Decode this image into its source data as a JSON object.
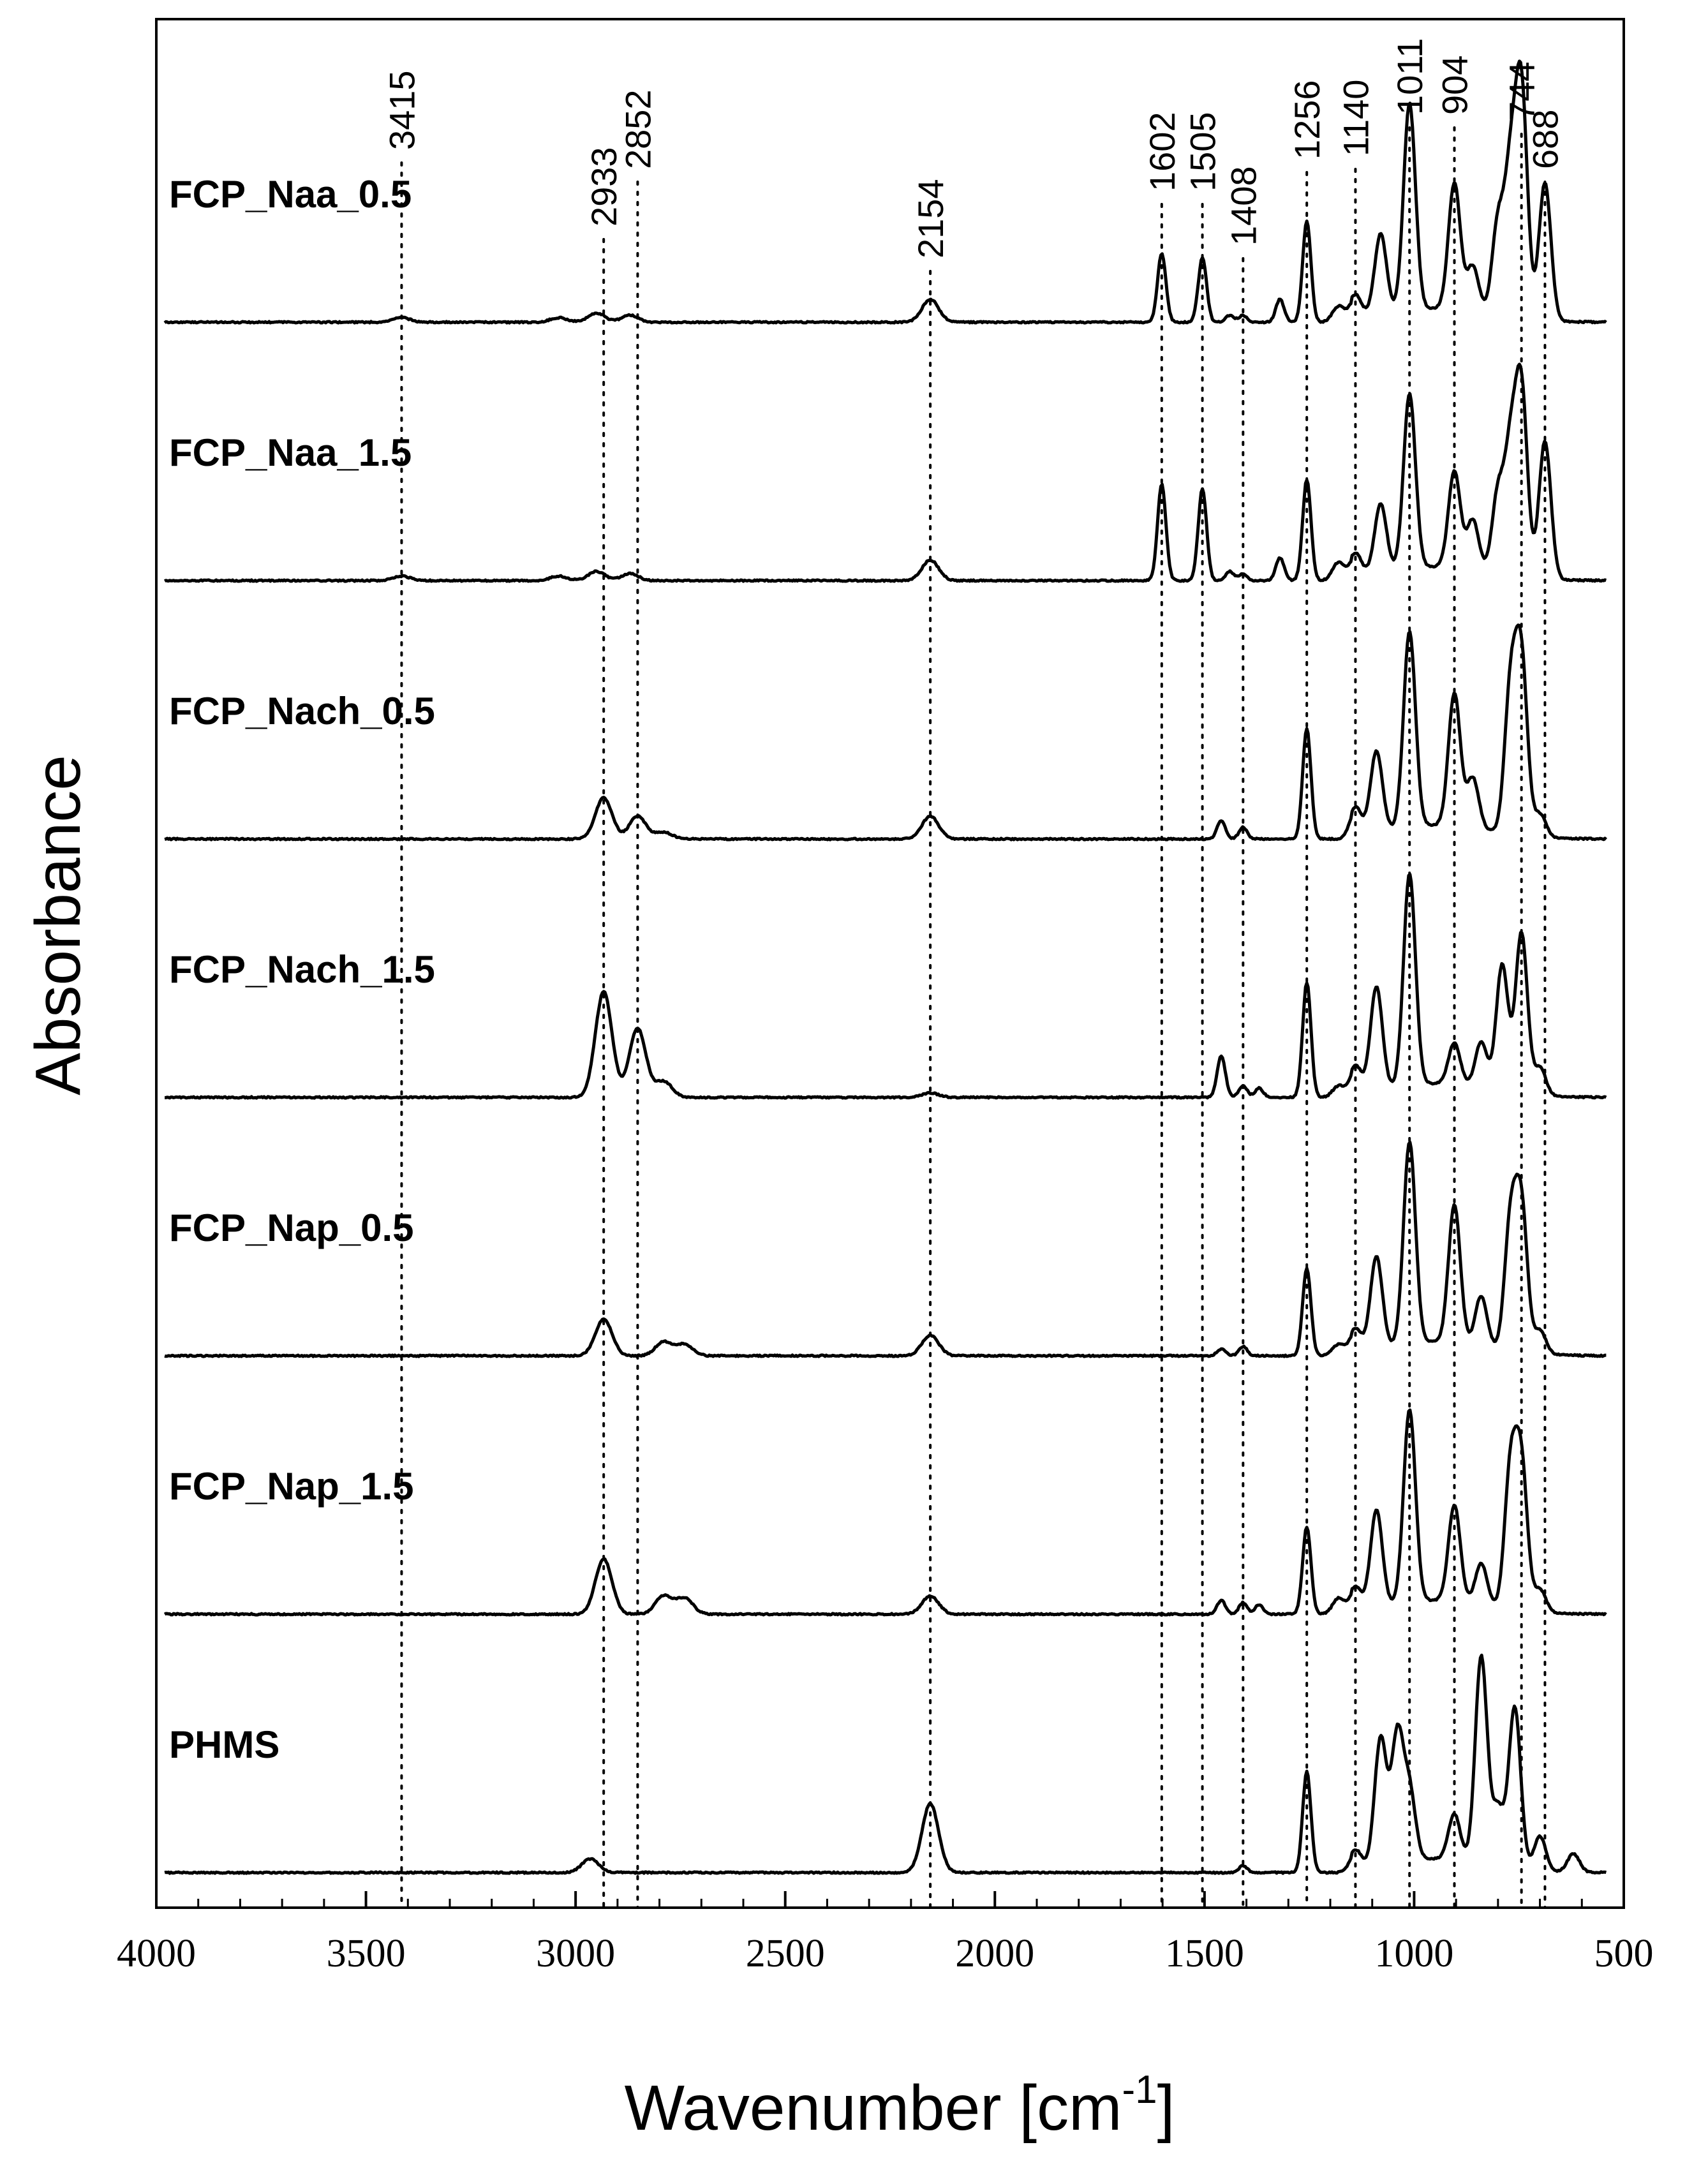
{
  "chart_data": {
    "type": "line",
    "xlabel": "Wavenumber [cm",
    "xlabel_sup": "-1",
    "xlabel_end": "]",
    "ylabel": "Absorbance",
    "xlim": [
      4000,
      500
    ],
    "x_reversed": true,
    "x_ticks": [
      4000,
      3500,
      3000,
      2500,
      2000,
      1500,
      1000,
      500
    ],
    "y_ticks_shown": false,
    "grid": false,
    "legend": "none",
    "reference_lines": [
      {
        "x": 3415,
        "label": "3415"
      },
      {
        "x": 2933,
        "label": "2933"
      },
      {
        "x": 2852,
        "label": "2852"
      },
      {
        "x": 2154,
        "label": "2154"
      },
      {
        "x": 1602,
        "label": "1602"
      },
      {
        "x": 1505,
        "label": "1505"
      },
      {
        "x": 1408,
        "label": "1408"
      },
      {
        "x": 1256,
        "label": "1256"
      },
      {
        "x": 1140,
        "label": "1140"
      },
      {
        "x": 1011,
        "label": "1011"
      },
      {
        "x": 904,
        "label": "904"
      },
      {
        "x": 744,
        "label": "744"
      },
      {
        "x": 688,
        "label": "688"
      }
    ],
    "series": [
      {
        "name": "FCP_Naa_0.5",
        "offset": 6,
        "peaks": [
          [
            3415,
            0.02
          ],
          [
            3040,
            0.02
          ],
          [
            2950,
            0.04
          ],
          [
            2870,
            0.03
          ],
          [
            2154,
            0.1
          ],
          [
            1602,
            0.3
          ],
          [
            1505,
            0.28
          ],
          [
            1440,
            0.03
          ],
          [
            1408,
            0.03
          ],
          [
            1320,
            0.1
          ],
          [
            1256,
            0.44
          ],
          [
            1180,
            0.07
          ],
          [
            1140,
            0.1
          ],
          [
            1080,
            0.35
          ],
          [
            1011,
            0.9
          ],
          [
            904,
            0.55
          ],
          [
            860,
            0.2
          ],
          [
            800,
            0.4
          ],
          [
            770,
            0.6
          ],
          [
            744,
            0.98
          ],
          [
            688,
            0.6
          ]
        ]
      },
      {
        "name": "FCP_Naa_1.5",
        "offset": 5,
        "peaks": [
          [
            3415,
            0.02
          ],
          [
            3040,
            0.02
          ],
          [
            2950,
            0.04
          ],
          [
            2870,
            0.03
          ],
          [
            2154,
            0.09
          ],
          [
            1602,
            0.42
          ],
          [
            1505,
            0.4
          ],
          [
            1440,
            0.04
          ],
          [
            1408,
            0.03
          ],
          [
            1320,
            0.1
          ],
          [
            1256,
            0.44
          ],
          [
            1180,
            0.08
          ],
          [
            1140,
            0.1
          ],
          [
            1080,
            0.3
          ],
          [
            1011,
            0.76
          ],
          [
            904,
            0.42
          ],
          [
            860,
            0.22
          ],
          [
            800,
            0.35
          ],
          [
            770,
            0.52
          ],
          [
            744,
            0.8
          ],
          [
            688,
            0.6
          ]
        ]
      },
      {
        "name": "FCP_Nach_0.5",
        "offset": 4,
        "peaks": [
          [
            2933,
            0.18
          ],
          [
            2852,
            0.1
          ],
          [
            2790,
            0.03
          ],
          [
            2154,
            0.1
          ],
          [
            1460,
            0.08
          ],
          [
            1408,
            0.05
          ],
          [
            1256,
            0.48
          ],
          [
            1140,
            0.12
          ],
          [
            1090,
            0.35
          ],
          [
            1011,
            0.85
          ],
          [
            904,
            0.58
          ],
          [
            860,
            0.22
          ],
          [
            770,
            0.62
          ],
          [
            744,
            0.75
          ],
          [
            700,
            0.1
          ]
        ]
      },
      {
        "name": "FCP_Nach_1.5",
        "offset": 3,
        "peaks": [
          [
            2933,
            0.46
          ],
          [
            2852,
            0.3
          ],
          [
            2790,
            0.07
          ],
          [
            2154,
            0.02
          ],
          [
            1460,
            0.18
          ],
          [
            1408,
            0.05
          ],
          [
            1370,
            0.04
          ],
          [
            1256,
            0.5
          ],
          [
            1180,
            0.05
          ],
          [
            1140,
            0.12
          ],
          [
            1090,
            0.45
          ],
          [
            1011,
            0.92
          ],
          [
            904,
            0.18
          ],
          [
            840,
            0.2
          ],
          [
            790,
            0.55
          ],
          [
            744,
            0.7
          ],
          [
            700,
            0.12
          ]
        ]
      },
      {
        "name": "FCP_Nap_0.5",
        "offset": 2,
        "peaks": [
          [
            2933,
            0.16
          ],
          [
            2790,
            0.06
          ],
          [
            2740,
            0.05
          ],
          [
            2154,
            0.09
          ],
          [
            1460,
            0.03
          ],
          [
            1408,
            0.04
          ],
          [
            1256,
            0.38
          ],
          [
            1180,
            0.05
          ],
          [
            1140,
            0.1
          ],
          [
            1090,
            0.4
          ],
          [
            1011,
            0.88
          ],
          [
            904,
            0.6
          ],
          [
            840,
            0.22
          ],
          [
            770,
            0.55
          ],
          [
            744,
            0.62
          ],
          [
            700,
            0.1
          ]
        ]
      },
      {
        "name": "FCP_Nap_1.5",
        "offset": 1,
        "peaks": [
          [
            2933,
            0.24
          ],
          [
            2790,
            0.08
          ],
          [
            2740,
            0.07
          ],
          [
            2154,
            0.08
          ],
          [
            1460,
            0.06
          ],
          [
            1408,
            0.05
          ],
          [
            1370,
            0.04
          ],
          [
            1256,
            0.38
          ],
          [
            1180,
            0.07
          ],
          [
            1140,
            0.1
          ],
          [
            1090,
            0.42
          ],
          [
            1011,
            0.84
          ],
          [
            904,
            0.42
          ],
          [
            840,
            0.18
          ],
          [
            770,
            0.6
          ],
          [
            744,
            0.62
          ],
          [
            700,
            0.1
          ]
        ]
      },
      {
        "name": "PHMS",
        "offset": 0,
        "peaks": [
          [
            2965,
            0.06
          ],
          [
            2154,
            0.3
          ],
          [
            1408,
            0.03
          ],
          [
            1256,
            0.44
          ],
          [
            1140,
            0.08
          ],
          [
            1080,
            0.55
          ],
          [
            1040,
            0.55
          ],
          [
            1011,
            0.3
          ],
          [
            904,
            0.2
          ],
          [
            840,
            0.9
          ],
          [
            800,
            0.25
          ],
          [
            760,
            0.7
          ],
          [
            700,
            0.15
          ],
          [
            620,
            0.08
          ]
        ]
      }
    ]
  }
}
